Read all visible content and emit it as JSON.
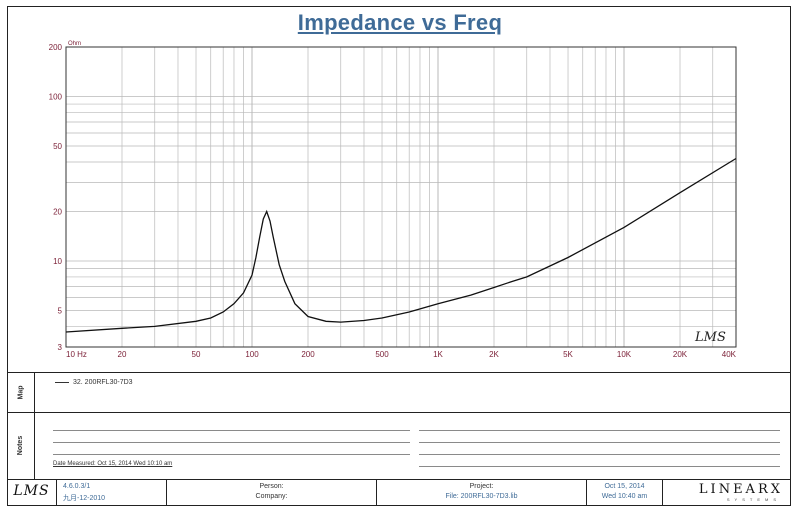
{
  "chart_data": {
    "type": "line",
    "title": "Impedance vs Freq",
    "y_unit": "Ohm",
    "x_scale": "log",
    "y_scale": "log",
    "xlim": [
      10,
      40000
    ],
    "ylim": [
      3,
      200
    ],
    "x_ticks": [
      {
        "v": 10,
        "label": "10 Hz"
      },
      {
        "v": 20,
        "label": "20"
      },
      {
        "v": 50,
        "label": "50"
      },
      {
        "v": 100,
        "label": "100"
      },
      {
        "v": 200,
        "label": "200"
      },
      {
        "v": 500,
        "label": "500"
      },
      {
        "v": 1000,
        "label": "1K"
      },
      {
        "v": 2000,
        "label": "2K"
      },
      {
        "v": 5000,
        "label": "5K"
      },
      {
        "v": 10000,
        "label": "10K"
      },
      {
        "v": 20000,
        "label": "20K"
      },
      {
        "v": 40000,
        "label": "40K"
      }
    ],
    "y_ticks": [
      {
        "v": 200,
        "label": "200"
      },
      {
        "v": 100,
        "label": "100"
      },
      {
        "v": 50,
        "label": "50"
      },
      {
        "v": 20,
        "label": "20"
      },
      {
        "v": 10,
        "label": "10"
      },
      {
        "v": 5,
        "label": "5"
      },
      {
        "v": 3,
        "label": "3"
      }
    ],
    "grid": true,
    "series": [
      {
        "name": "32. 200RFL30-7D3",
        "x": [
          10,
          20,
          30,
          50,
          60,
          70,
          80,
          90,
          100,
          105,
          110,
          115,
          120,
          125,
          130,
          140,
          150,
          170,
          200,
          250,
          300,
          400,
          500,
          700,
          1000,
          1500,
          2000,
          2500,
          3000,
          5000,
          10000,
          20000,
          40000
        ],
        "y": [
          3.7,
          3.9,
          4.0,
          4.3,
          4.5,
          4.9,
          5.5,
          6.4,
          8.2,
          10.5,
          14,
          18,
          20,
          17.5,
          14,
          9.5,
          7.5,
          5.5,
          4.6,
          4.3,
          4.25,
          4.35,
          4.5,
          4.9,
          5.5,
          6.2,
          6.9,
          7.5,
          8.0,
          10.5,
          16,
          26,
          42
        ]
      }
    ]
  },
  "panels": {
    "map_label": "Map",
    "notes_label": "Notes",
    "date_measured": "Date Measured: Oct 15, 2014  Wed 10:10 am"
  },
  "footer": {
    "logo": "LMS",
    "version": "4.6.0.3/1",
    "version_date": "九月-12-2010",
    "person_label": "Person:",
    "company_label": "Company:",
    "project_label": "Project:",
    "file_label": "File: 200RFL30-7D3.lib",
    "date": "Oct 15, 2014",
    "time": "Wed 10:40 am",
    "brand": "LINEARX",
    "brand_sub": "SYSTEMS"
  },
  "watermark": "LMS",
  "colors": {
    "title": "#3f6b97",
    "tick": "#7a1e35",
    "grid": "#b9b9b9",
    "curve": "#111111"
  }
}
